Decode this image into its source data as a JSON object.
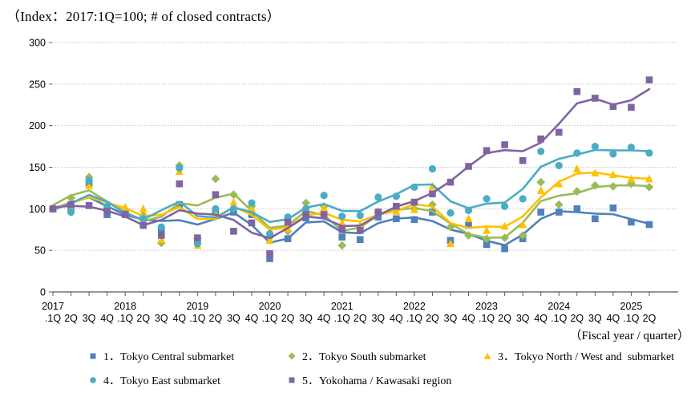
{
  "chart_data": {
    "type": "scatter",
    "title": "（Index：2017:1Q=100; # of closed contracts）",
    "grid": "horizontal dotted gridlines",
    "legend_position": "bottom",
    "smoothing": "quarterly markers plus weighted moving-average trend line per series",
    "x_axis": {
      "caption": "（Fiscal year / quarter）",
      "years": [
        "2017",
        "2018",
        "2019",
        "2020",
        "2021",
        "2022",
        "2023",
        "2024",
        "2025"
      ],
      "quarter_tick_labels": [
        ".1Q",
        "2Q",
        "3Q",
        "4Q"
      ],
      "categories": [
        "2017.1Q",
        "2017.2Q",
        "2017.3Q",
        "2017.4Q",
        "2018.1Q",
        "2018.2Q",
        "2018.3Q",
        "2018.4Q",
        "2019.1Q",
        "2019.2Q",
        "2019.3Q",
        "2019.4Q",
        "2020.1Q",
        "2020.2Q",
        "2020.3Q",
        "2020.4Q",
        "2021.1Q",
        "2021.2Q",
        "2021.3Q",
        "2021.4Q",
        "2022.1Q",
        "2022.2Q",
        "2022.3Q",
        "2022.4Q",
        "2023.1Q",
        "2023.2Q",
        "2023.3Q",
        "2023.4Q",
        "2024.1Q",
        "2024.2Q",
        "2024.3Q",
        "2024.4Q",
        "2025.1Q",
        "2025.2Q"
      ]
    },
    "y_axis": {
      "min": 0,
      "max": 300,
      "step": 50,
      "tick_labels": [
        "0",
        "50",
        "100",
        "150",
        "200",
        "250",
        "300"
      ]
    },
    "series": [
      {
        "name": "1．Tokyo Central submarket",
        "marker": "square",
        "color": "#4F81BD",
        "values": [
          100,
          100,
          131,
          93,
          95,
          89,
          74,
          105,
          61,
          97,
          96,
          93,
          40,
          64,
          89,
          92,
          66,
          63,
          90,
          88,
          87,
          96,
          62,
          80,
          57,
          52,
          64,
          96,
          96,
          100,
          88,
          101,
          84,
          81
        ]
      },
      {
        "name": "2．Tokyo South submarket",
        "marker": "diamond",
        "color": "#9BBB59",
        "values": [
          100,
          113,
          138,
          100,
          97,
          92,
          59,
          152,
          64,
          136,
          117,
          103,
          66,
          73,
          107,
          103,
          56,
          79,
          96,
          99,
          100,
          105,
          78,
          68,
          64,
          65,
          68,
          132,
          105,
          121,
          128,
          127,
          130,
          126
        ]
      },
      {
        "name": "3．Tokyo North / West and  submarket",
        "marker": "triangle",
        "color": "#FFC000",
        "values": [
          100,
          100,
          128,
          100,
          102,
          100,
          63,
          145,
          56,
          94,
          108,
          100,
          62,
          76,
          96,
          101,
          83,
          80,
          97,
          97,
          99,
          127,
          58,
          88,
          74,
          79,
          81,
          122,
          130,
          148,
          143,
          141,
          136,
          136
        ]
      },
      {
        "name": "4．Tokyo East submarket",
        "marker": "circle",
        "color": "#4BACC6",
        "values": [
          100,
          96,
          134,
          103,
          94,
          88,
          78,
          149,
          58,
          100,
          100,
          107,
          70,
          90,
          100,
          116,
          91,
          92,
          114,
          115,
          126,
          148,
          95,
          98,
          112,
          103,
          112,
          169,
          152,
          167,
          175,
          166,
          174,
          167
        ]
      },
      {
        "name": "5．Yokohama / Kawasaki region",
        "marker": "square",
        "color": "#8064A2",
        "values": [
          100,
          105,
          104,
          97,
          93,
          80,
          68,
          130,
          65,
          117,
          73,
          83,
          46,
          84,
          93,
          93,
          75,
          74,
          96,
          103,
          108,
          118,
          132,
          151,
          170,
          177,
          158,
          184,
          192,
          241,
          233,
          223,
          222,
          255
        ]
      }
    ],
    "colors": {
      "grid": "#bfbfbf",
      "axis": "#595959",
      "text": "#000000"
    }
  }
}
